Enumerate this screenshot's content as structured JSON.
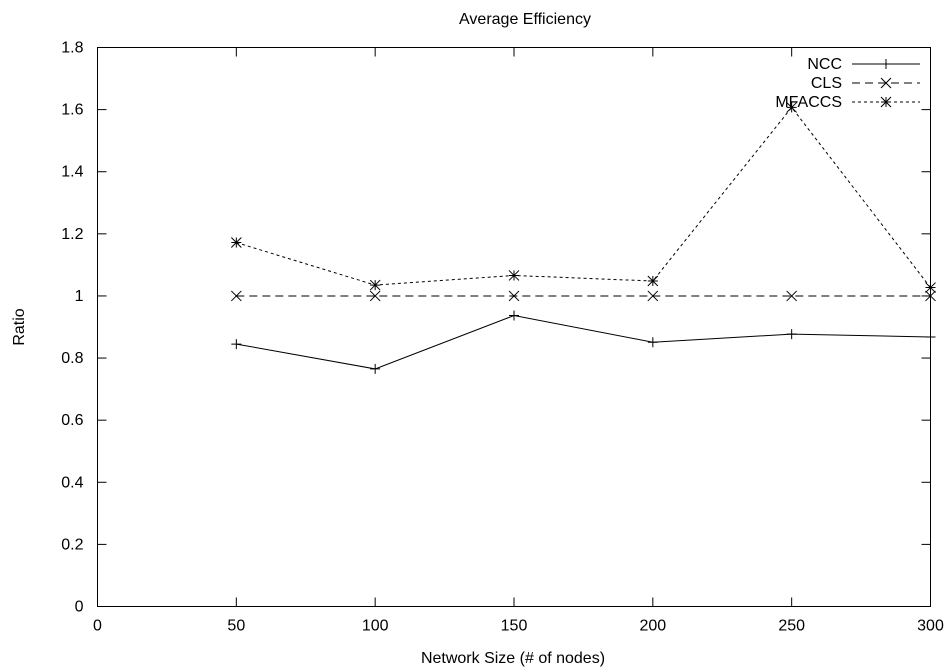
{
  "chart_data": {
    "type": "line",
    "title": "Average Efficiency",
    "xlabel": "Network Size (# of nodes)",
    "ylabel": "Ratio",
    "xlim": [
      0,
      300
    ],
    "ylim": [
      0,
      1.8
    ],
    "x_ticks": [
      0,
      50,
      100,
      150,
      200,
      250,
      300
    ],
    "y_ticks": [
      0,
      0.2,
      0.4,
      0.6,
      0.8,
      1,
      1.2,
      1.4,
      1.6,
      1.8
    ],
    "x": [
      50,
      100,
      150,
      200,
      250,
      300
    ],
    "grid": false,
    "legend_position": "top-right",
    "series": [
      {
        "name": "NCC",
        "values": [
          0.845,
          0.765,
          0.937,
          0.851,
          0.877,
          0.868
        ],
        "marker": "plus",
        "dash": "solid"
      },
      {
        "name": "CLS",
        "values": [
          1.0,
          1.0,
          1.0,
          1.0,
          1.0,
          1.0
        ],
        "marker": "cross",
        "dash": "dashed"
      },
      {
        "name": "MFACCS",
        "values": [
          1.172,
          1.035,
          1.066,
          1.048,
          1.607,
          1.027
        ],
        "marker": "star",
        "dash": "dotted"
      }
    ]
  }
}
